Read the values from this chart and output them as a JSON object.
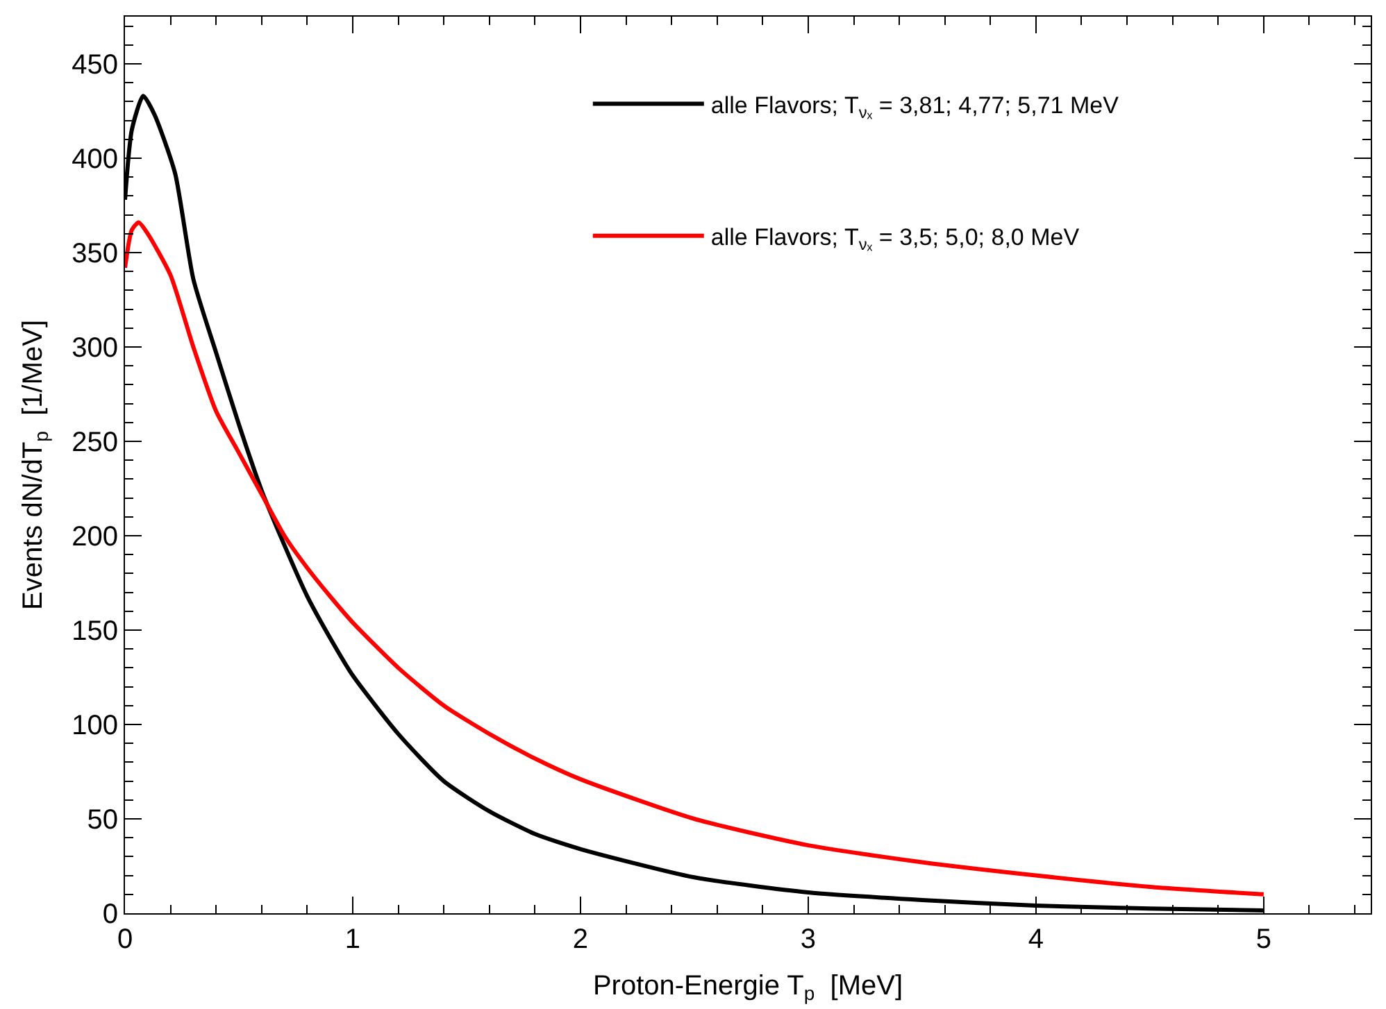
{
  "chart_data": {
    "type": "line",
    "xlabel": "Proton-Energie T$_{p}$  [MeV]",
    "ylabel": "Events dN/dT$_{p}$  [1/MeV]",
    "xlim": [
      0,
      5.47
    ],
    "ylim": [
      0,
      475
    ],
    "xticks": [
      0,
      1,
      2,
      3,
      4,
      5
    ],
    "yticks": [
      0,
      50,
      100,
      150,
      200,
      250,
      300,
      350,
      400,
      450
    ],
    "legend": "top right",
    "marker": "none",
    "line_style": "solid",
    "series": [
      {
        "name": "alle Flavors; T$_{νₓ}$ = 3,81; 4,77; 5,71 MeV",
        "color": "#000000",
        "x": [
          0,
          0.03,
          0.08,
          0.13,
          0.22,
          0.3,
          0.4,
          0.5,
          0.6,
          0.7,
          0.8,
          0.9,
          1.0,
          1.2,
          1.4,
          1.6,
          1.8,
          2.0,
          2.5,
          3.0,
          3.5,
          4.0,
          4.5,
          5.0
        ],
        "values": [
          378,
          415,
          433,
          423,
          392,
          336,
          297,
          259,
          224,
          195,
          168,
          146,
          126,
          95,
          70,
          54,
          42,
          34,
          19,
          11,
          7,
          4,
          2.5,
          1.5
        ]
      },
      {
        "name": "alle Flavors; T$_{νₓ}$ = 3,5; 5,0; 8,0 MeV",
        "color": "#ff0000",
        "x": [
          0,
          0.03,
          0.06,
          0.1,
          0.2,
          0.3,
          0.4,
          0.5,
          0.6,
          0.7,
          0.8,
          0.9,
          1.0,
          1.2,
          1.4,
          1.6,
          1.8,
          2.0,
          2.5,
          3.0,
          3.5,
          4.0,
          4.5,
          5.0
        ],
        "values": [
          342,
          362,
          366,
          360,
          338,
          300,
          266,
          244,
          222,
          200,
          183,
          168,
          154,
          130,
          110,
          95,
          82,
          71,
          50,
          36,
          27,
          20,
          14,
          10
        ]
      }
    ]
  }
}
